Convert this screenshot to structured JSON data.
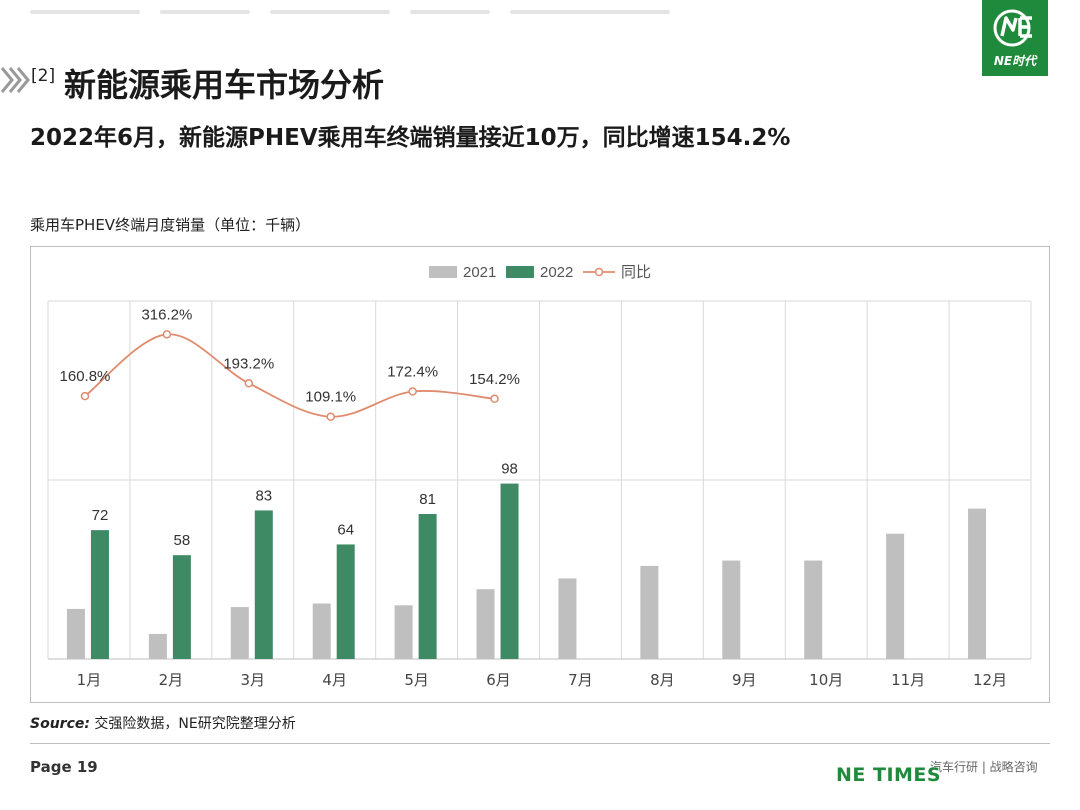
{
  "header": {
    "logo_text": "NE时代",
    "section_number": "[2]",
    "section_title": "新能源乘用车市场分析",
    "subtitle": "2022年6月，新能源PHEV乘用车终端销量接近10万，同比增速154.2%"
  },
  "chart_caption": "乘用车PHEV终端月度销量（单位：千辆）",
  "chart_data": {
    "type": "bar",
    "categories": [
      "1月",
      "2月",
      "3月",
      "4月",
      "5月",
      "6月",
      "7月",
      "8月",
      "9月",
      "10月",
      "11月",
      "12月"
    ],
    "series": [
      {
        "name": "2021",
        "type": "bar",
        "color": "#bfbfbf",
        "values": [
          28,
          14,
          29,
          31,
          30,
          39,
          45,
          52,
          55,
          55,
          70,
          84
        ]
      },
      {
        "name": "2022",
        "type": "bar",
        "color": "#3d8a65",
        "values": [
          72,
          58,
          83,
          64,
          81,
          98,
          null,
          null,
          null,
          null,
          null,
          null
        ],
        "labels": [
          "72",
          "58",
          "83",
          "64",
          "81",
          "98"
        ]
      },
      {
        "name": "同比",
        "type": "line",
        "color": "#e08b6d",
        "values": [
          160.8,
          316.2,
          193.2,
          109.1,
          172.4,
          154.2,
          null,
          null,
          null,
          null,
          null,
          null
        ],
        "labels": [
          "160.8%",
          "316.2%",
          "193.2%",
          "109.1%",
          "172.4%",
          "154.2%"
        ]
      }
    ],
    "ylim": [
      0,
      200
    ],
    "ylim_yoy": [
      -500,
      400
    ],
    "grid": true,
    "legend_position": "top-center"
  },
  "footer": {
    "source_label": "Source:",
    "source_text": "交强险数据，NE研究院整理分析",
    "page": "Page 19",
    "brand": "NE TIMES",
    "tagline": "汽车行研 | 战略咨询"
  }
}
